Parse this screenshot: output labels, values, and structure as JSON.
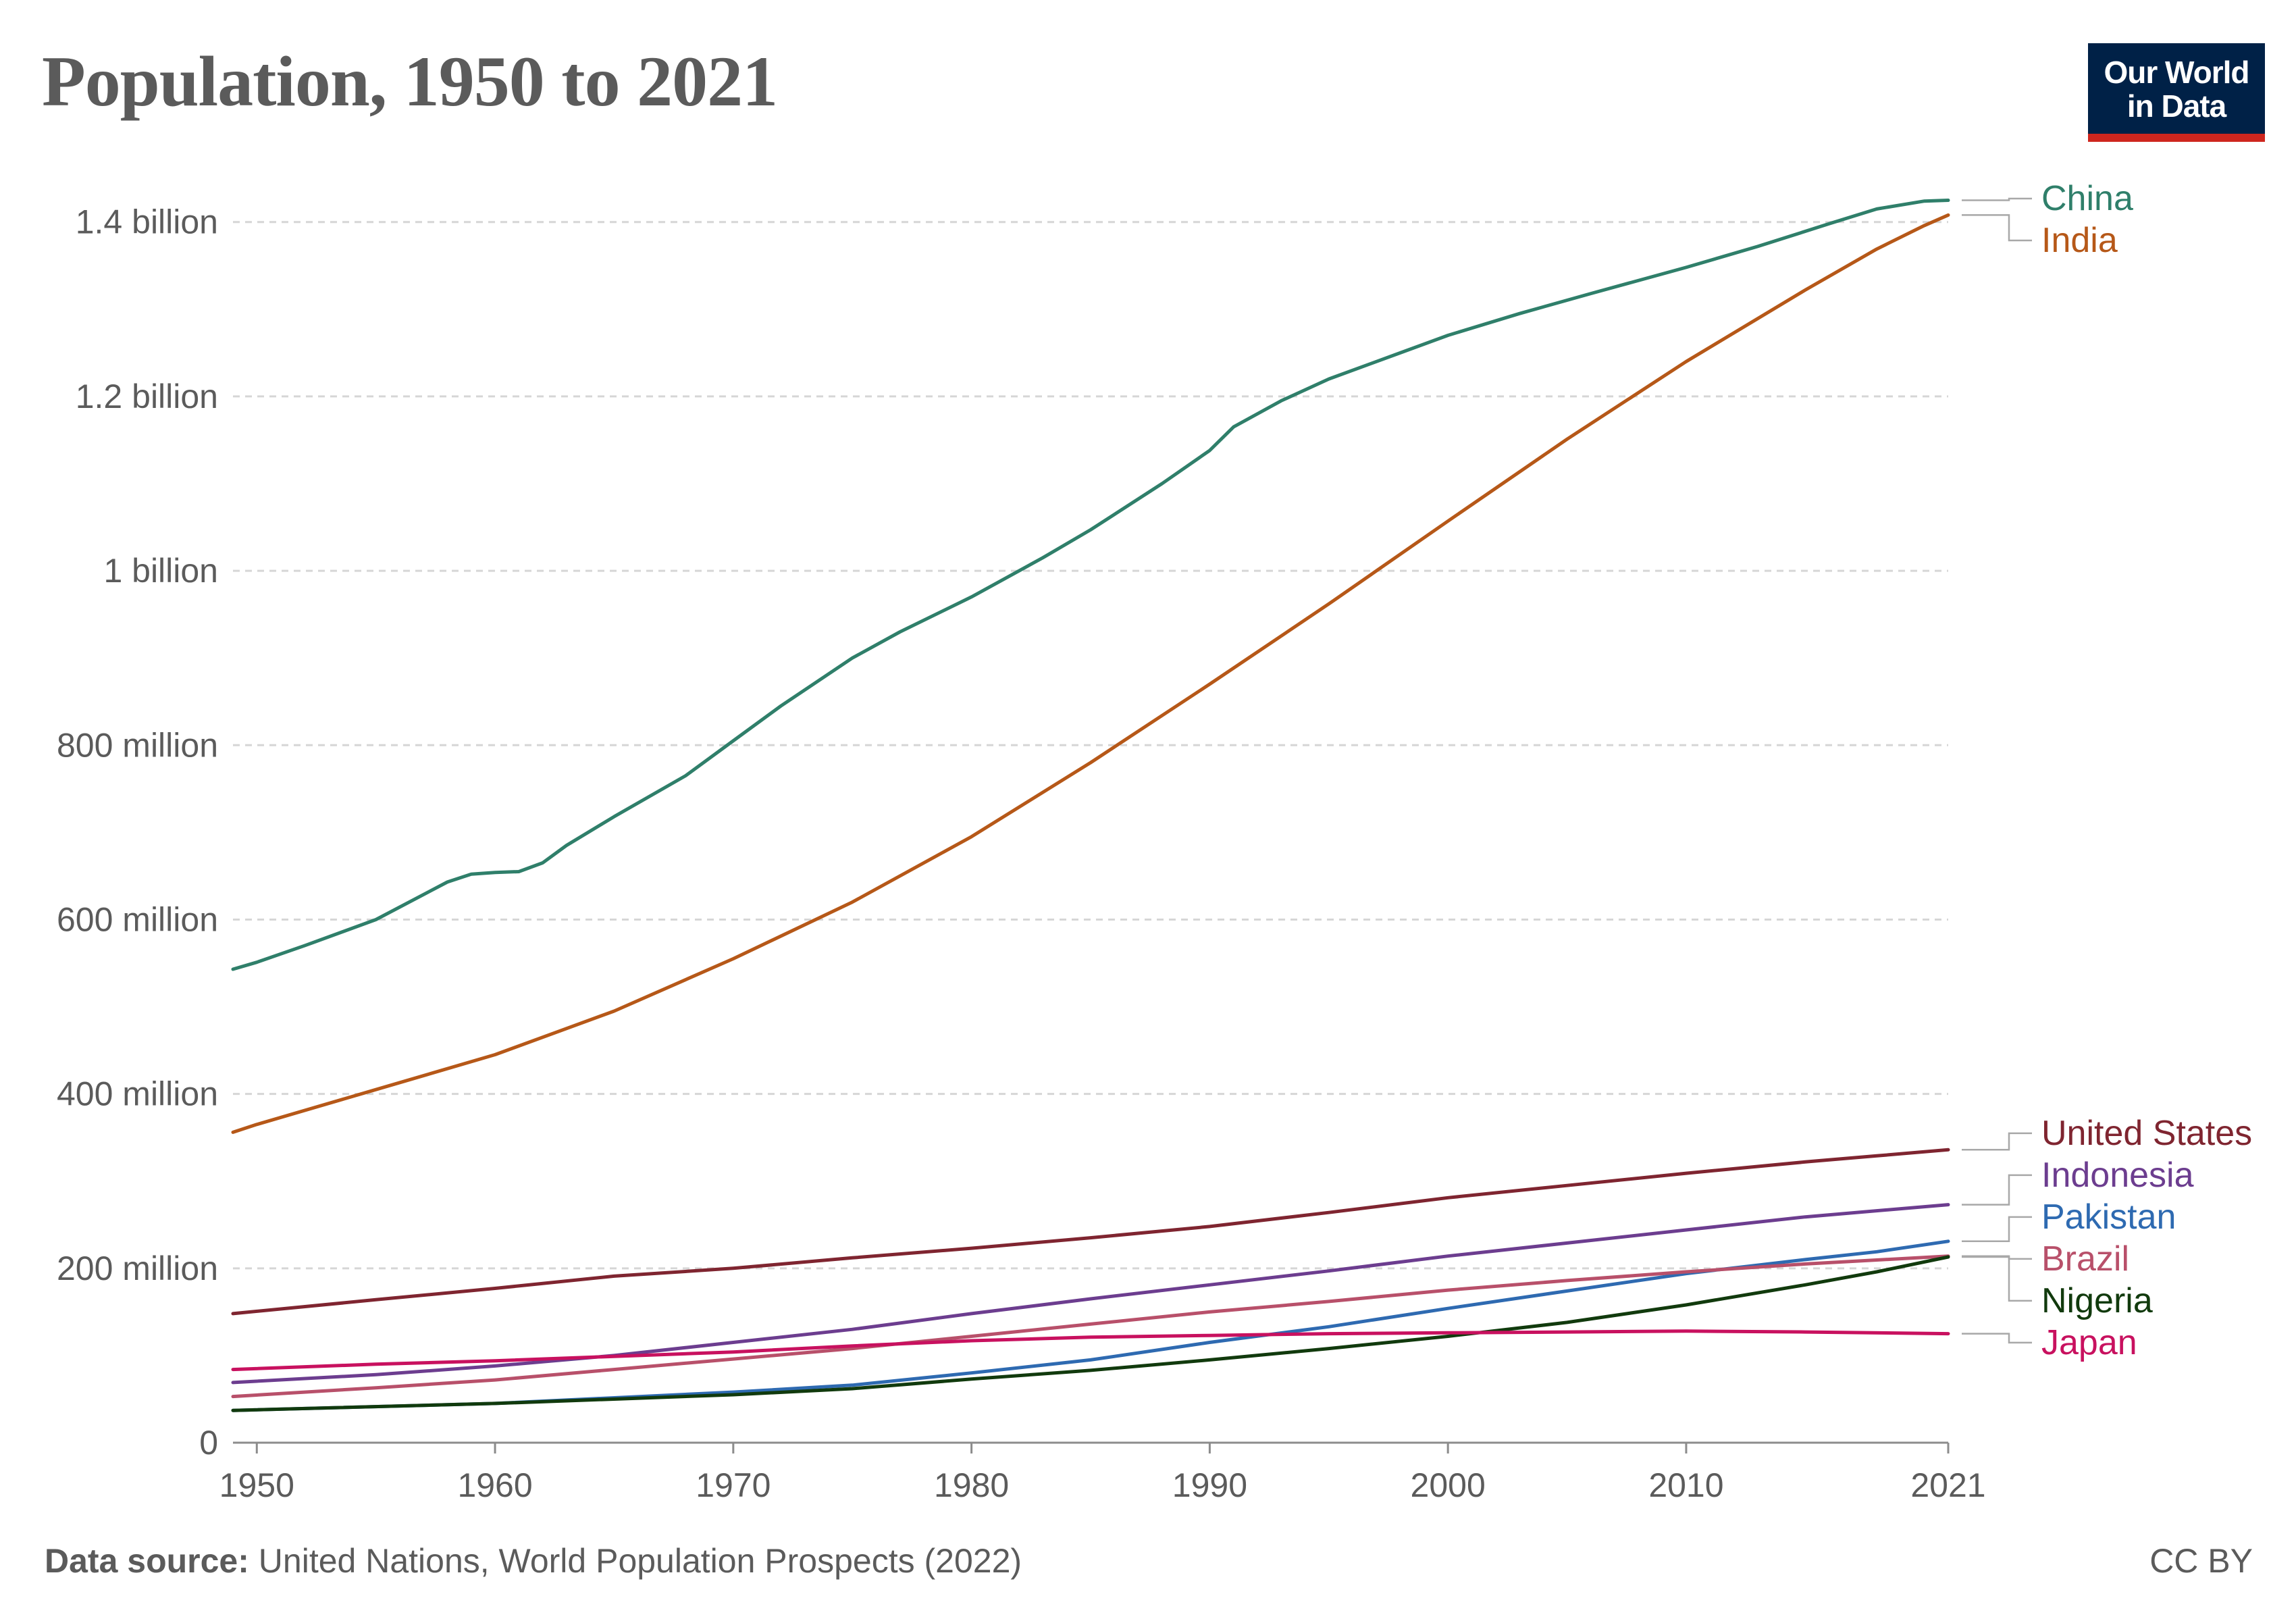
{
  "header": {
    "title": "Population, 1950 to 2021",
    "logo_line1": "Our World",
    "logo_line2": "in Data"
  },
  "footer": {
    "source_label": "Data source:",
    "source_text": "United Nations, World Population Prospects (2022)",
    "license": "CC BY"
  },
  "chart_data": {
    "type": "line",
    "title": "Population, 1950 to 2021",
    "xlabel": "",
    "ylabel": "",
    "xlim": [
      1949,
      2021
    ],
    "ylim": [
      0,
      1430000000
    ],
    "grid": true,
    "x_ticks": [
      {
        "value": 1950,
        "label": "1950"
      },
      {
        "value": 1960,
        "label": "1960"
      },
      {
        "value": 1970,
        "label": "1970"
      },
      {
        "value": 1980,
        "label": "1980"
      },
      {
        "value": 1990,
        "label": "1990"
      },
      {
        "value": 2000,
        "label": "2000"
      },
      {
        "value": 2010,
        "label": "2010"
      },
      {
        "value": 2021,
        "label": "2021"
      }
    ],
    "y_ticks": [
      {
        "value": 0,
        "label": "0"
      },
      {
        "value": 200000000,
        "label": "200 million"
      },
      {
        "value": 400000000,
        "label": "400 million"
      },
      {
        "value": 600000000,
        "label": "600 million"
      },
      {
        "value": 800000000,
        "label": "800 million"
      },
      {
        "value": 1000000000,
        "label": "1 billion"
      },
      {
        "value": 1200000000,
        "label": "1.2 billion"
      },
      {
        "value": 1400000000,
        "label": "1.4 billion"
      }
    ],
    "series": [
      {
        "name": "China",
        "color": "#2f7f6a",
        "points": [
          [
            1949,
            543000000
          ],
          [
            1950,
            551000000
          ],
          [
            1952,
            570000000
          ],
          [
            1955,
            600000000
          ],
          [
            1958,
            643000000
          ],
          [
            1959,
            652000000
          ],
          [
            1960,
            654000000
          ],
          [
            1961,
            655000000
          ],
          [
            1962,
            665000000
          ],
          [
            1963,
            685000000
          ],
          [
            1965,
            718000000
          ],
          [
            1968,
            765000000
          ],
          [
            1970,
            805000000
          ],
          [
            1972,
            845000000
          ],
          [
            1975,
            900000000
          ],
          [
            1977,
            930000000
          ],
          [
            1980,
            970000000
          ],
          [
            1983,
            1015000000
          ],
          [
            1985,
            1047000000
          ],
          [
            1988,
            1100000000
          ],
          [
            1990,
            1138000000
          ],
          [
            1991,
            1165000000
          ],
          [
            1993,
            1195000000
          ],
          [
            1995,
            1220000000
          ],
          [
            1998,
            1250000000
          ],
          [
            2000,
            1270000000
          ],
          [
            2003,
            1295000000
          ],
          [
            2006,
            1318000000
          ],
          [
            2010,
            1348000000
          ],
          [
            2013,
            1372000000
          ],
          [
            2016,
            1398000000
          ],
          [
            2018,
            1415000000
          ],
          [
            2020,
            1424000000
          ],
          [
            2021,
            1425000000
          ]
        ]
      },
      {
        "name": "India",
        "color": "#b65818",
        "points": [
          [
            1949,
            356000000
          ],
          [
            1950,
            365000000
          ],
          [
            1955,
            405000000
          ],
          [
            1960,
            445000000
          ],
          [
            1965,
            495000000
          ],
          [
            1970,
            555000000
          ],
          [
            1975,
            620000000
          ],
          [
            1980,
            695000000
          ],
          [
            1985,
            780000000
          ],
          [
            1990,
            870000000
          ],
          [
            1995,
            962000000
          ],
          [
            2000,
            1057000000
          ],
          [
            2005,
            1151000000
          ],
          [
            2010,
            1240000000
          ],
          [
            2015,
            1322000000
          ],
          [
            2018,
            1369000000
          ],
          [
            2020,
            1396000000
          ],
          [
            2021,
            1408000000
          ]
        ]
      },
      {
        "name": "United States",
        "color": "#7f2530",
        "points": [
          [
            1949,
            148000000
          ],
          [
            1955,
            164000000
          ],
          [
            1960,
            177000000
          ],
          [
            1965,
            191000000
          ],
          [
            1970,
            200000000
          ],
          [
            1975,
            212000000
          ],
          [
            1980,
            223000000
          ],
          [
            1985,
            235000000
          ],
          [
            1990,
            248000000
          ],
          [
            1995,
            264000000
          ],
          [
            2000,
            281000000
          ],
          [
            2005,
            295000000
          ],
          [
            2010,
            309000000
          ],
          [
            2015,
            322000000
          ],
          [
            2018,
            329000000
          ],
          [
            2021,
            336000000
          ]
        ]
      },
      {
        "name": "Indonesia",
        "color": "#6c3d8f",
        "points": [
          [
            1949,
            69000000
          ],
          [
            1955,
            78000000
          ],
          [
            1960,
            88000000
          ],
          [
            1965,
            100000000
          ],
          [
            1970,
            115000000
          ],
          [
            1975,
            130000000
          ],
          [
            1980,
            148000000
          ],
          [
            1985,
            165000000
          ],
          [
            1990,
            181000000
          ],
          [
            1995,
            197000000
          ],
          [
            2000,
            214000000
          ],
          [
            2005,
            229000000
          ],
          [
            2010,
            244000000
          ],
          [
            2015,
            259000000
          ],
          [
            2021,
            273000000
          ]
        ]
      },
      {
        "name": "Pakistan",
        "color": "#2e6ab1",
        "points": [
          [
            1949,
            37000000
          ],
          [
            1960,
            45000000
          ],
          [
            1970,
            58000000
          ],
          [
            1975,
            66000000
          ],
          [
            1980,
            80000000
          ],
          [
            1985,
            95000000
          ],
          [
            1990,
            115000000
          ],
          [
            1995,
            133000000
          ],
          [
            2000,
            154000000
          ],
          [
            2005,
            174000000
          ],
          [
            2010,
            194000000
          ],
          [
            2015,
            210000000
          ],
          [
            2018,
            219000000
          ],
          [
            2021,
            231000000
          ]
        ]
      },
      {
        "name": "Brazil",
        "color": "#b8506a",
        "points": [
          [
            1949,
            53000000
          ],
          [
            1955,
            63000000
          ],
          [
            1960,
            72000000
          ],
          [
            1965,
            84000000
          ],
          [
            1970,
            96000000
          ],
          [
            1975,
            108000000
          ],
          [
            1980,
            122000000
          ],
          [
            1985,
            136000000
          ],
          [
            1990,
            150000000
          ],
          [
            1995,
            162000000
          ],
          [
            2000,
            175000000
          ],
          [
            2005,
            186000000
          ],
          [
            2010,
            196000000
          ],
          [
            2015,
            205000000
          ],
          [
            2021,
            214000000
          ]
        ]
      },
      {
        "name": "Nigeria",
        "color": "#113a0d",
        "points": [
          [
            1949,
            37000000
          ],
          [
            1960,
            45000000
          ],
          [
            1970,
            55000000
          ],
          [
            1975,
            62000000
          ],
          [
            1980,
            73000000
          ],
          [
            1985,
            83000000
          ],
          [
            1990,
            95000000
          ],
          [
            1995,
            108000000
          ],
          [
            2000,
            122000000
          ],
          [
            2005,
            138000000
          ],
          [
            2010,
            158000000
          ],
          [
            2015,
            181000000
          ],
          [
            2018,
            196000000
          ],
          [
            2021,
            213000000
          ]
        ]
      },
      {
        "name": "Japan",
        "color": "#c8115f",
        "points": [
          [
            1949,
            84000000
          ],
          [
            1955,
            90000000
          ],
          [
            1960,
            94000000
          ],
          [
            1965,
            99000000
          ],
          [
            1970,
            104000000
          ],
          [
            1975,
            111000000
          ],
          [
            1980,
            117000000
          ],
          [
            1985,
            121000000
          ],
          [
            1990,
            123000000
          ],
          [
            1995,
            125000000
          ],
          [
            2000,
            126000000
          ],
          [
            2005,
            127000000
          ],
          [
            2010,
            128000000
          ],
          [
            2015,
            127000000
          ],
          [
            2021,
            125000000
          ]
        ]
      }
    ]
  }
}
